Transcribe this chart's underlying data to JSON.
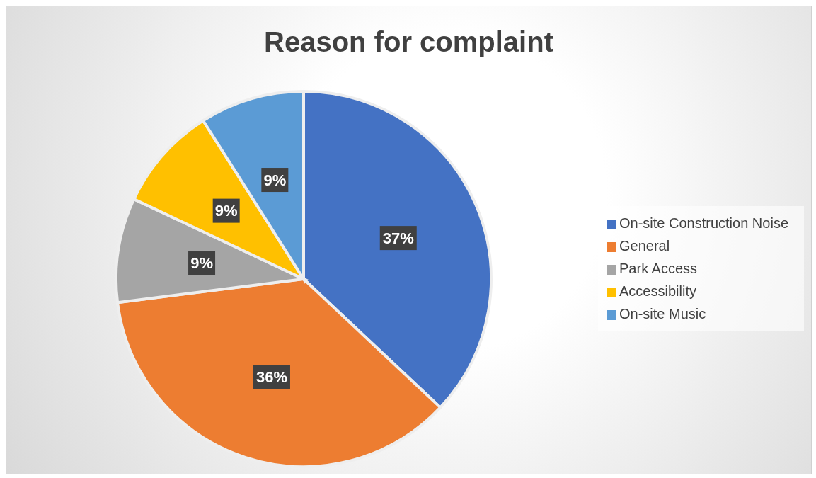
{
  "chart_data": {
    "type": "pie",
    "title": "Reason for complaint",
    "categories": [
      "On-site Construction Noise",
      "General",
      "Park Access",
      "Accessibility",
      "On-site Music"
    ],
    "values": [
      37,
      36,
      9,
      9,
      9
    ],
    "colors": [
      "#4472c4",
      "#ed7d31",
      "#a5a5a5",
      "#ffc000",
      "#5b9bd5"
    ],
    "value_labels": [
      "37%",
      "36%",
      "9%",
      "9%",
      "9%"
    ],
    "legend": "right"
  }
}
